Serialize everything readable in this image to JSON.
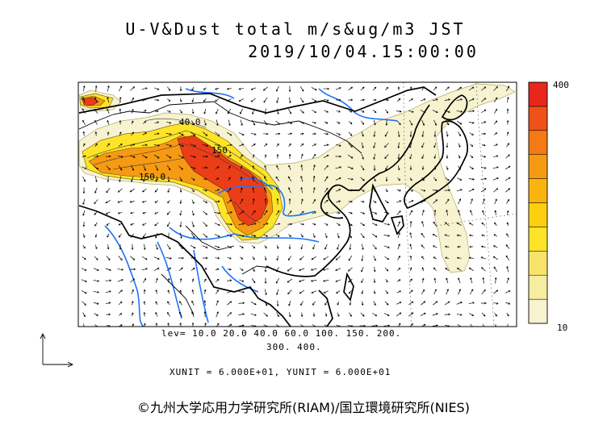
{
  "title_line1": "U-V&Dust total m/s&ug/m3 JST",
  "title_line2": "2019/10/04.15:00:00",
  "colorbar": {
    "max_label": "400",
    "min_label": "10"
  },
  "contour_labels": [
    "40.0",
    "150.",
    "150.0"
  ],
  "levels_line1": "lev= 10.0 20.0 40.0 60.0 100. 150. 200.",
  "levels_line2": "300. 400.",
  "units_line": "XUNIT = 6.000E+01, YUNIT = 6.000E+01",
  "credit": "©九州大学応用力学研究所(RIAM)/国立環境研究所(NIES)",
  "colors": {
    "band": [
      "#f7f2cf",
      "#f7eda0",
      "#f8e36a",
      "#fde428",
      "#fcd00e",
      "#f9b410",
      "#f69913",
      "#f37a15",
      "#ee5218",
      "#e9261b"
    ],
    "rivers": "#1e73ff",
    "coast": "#000000"
  }
}
